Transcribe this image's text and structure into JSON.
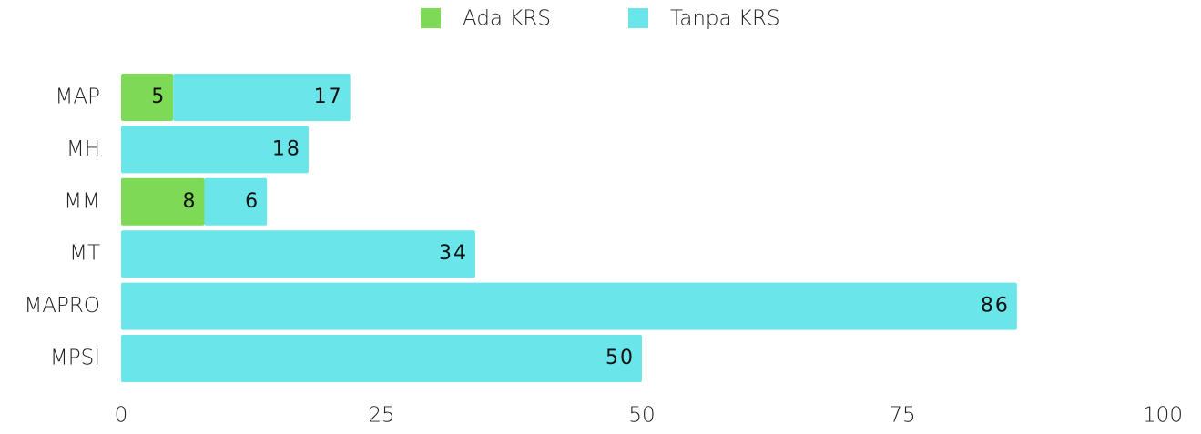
{
  "chart_data": {
    "type": "bar",
    "orientation": "horizontal",
    "stacked": true,
    "categories": [
      "MAP",
      "MH",
      "MM",
      "MT",
      "MAPRO",
      "MPSI"
    ],
    "series": [
      {
        "name": "Ada KRS",
        "color": "#7ed957",
        "values": [
          5,
          0,
          8,
          0,
          0,
          0
        ]
      },
      {
        "name": "Tanpa KRS",
        "color": "#6ae5ea",
        "values": [
          17,
          18,
          6,
          34,
          86,
          50
        ]
      }
    ],
    "xlim": [
      0,
      100
    ],
    "xticks": [
      0,
      25,
      50,
      75,
      100
    ],
    "legend": "top"
  }
}
